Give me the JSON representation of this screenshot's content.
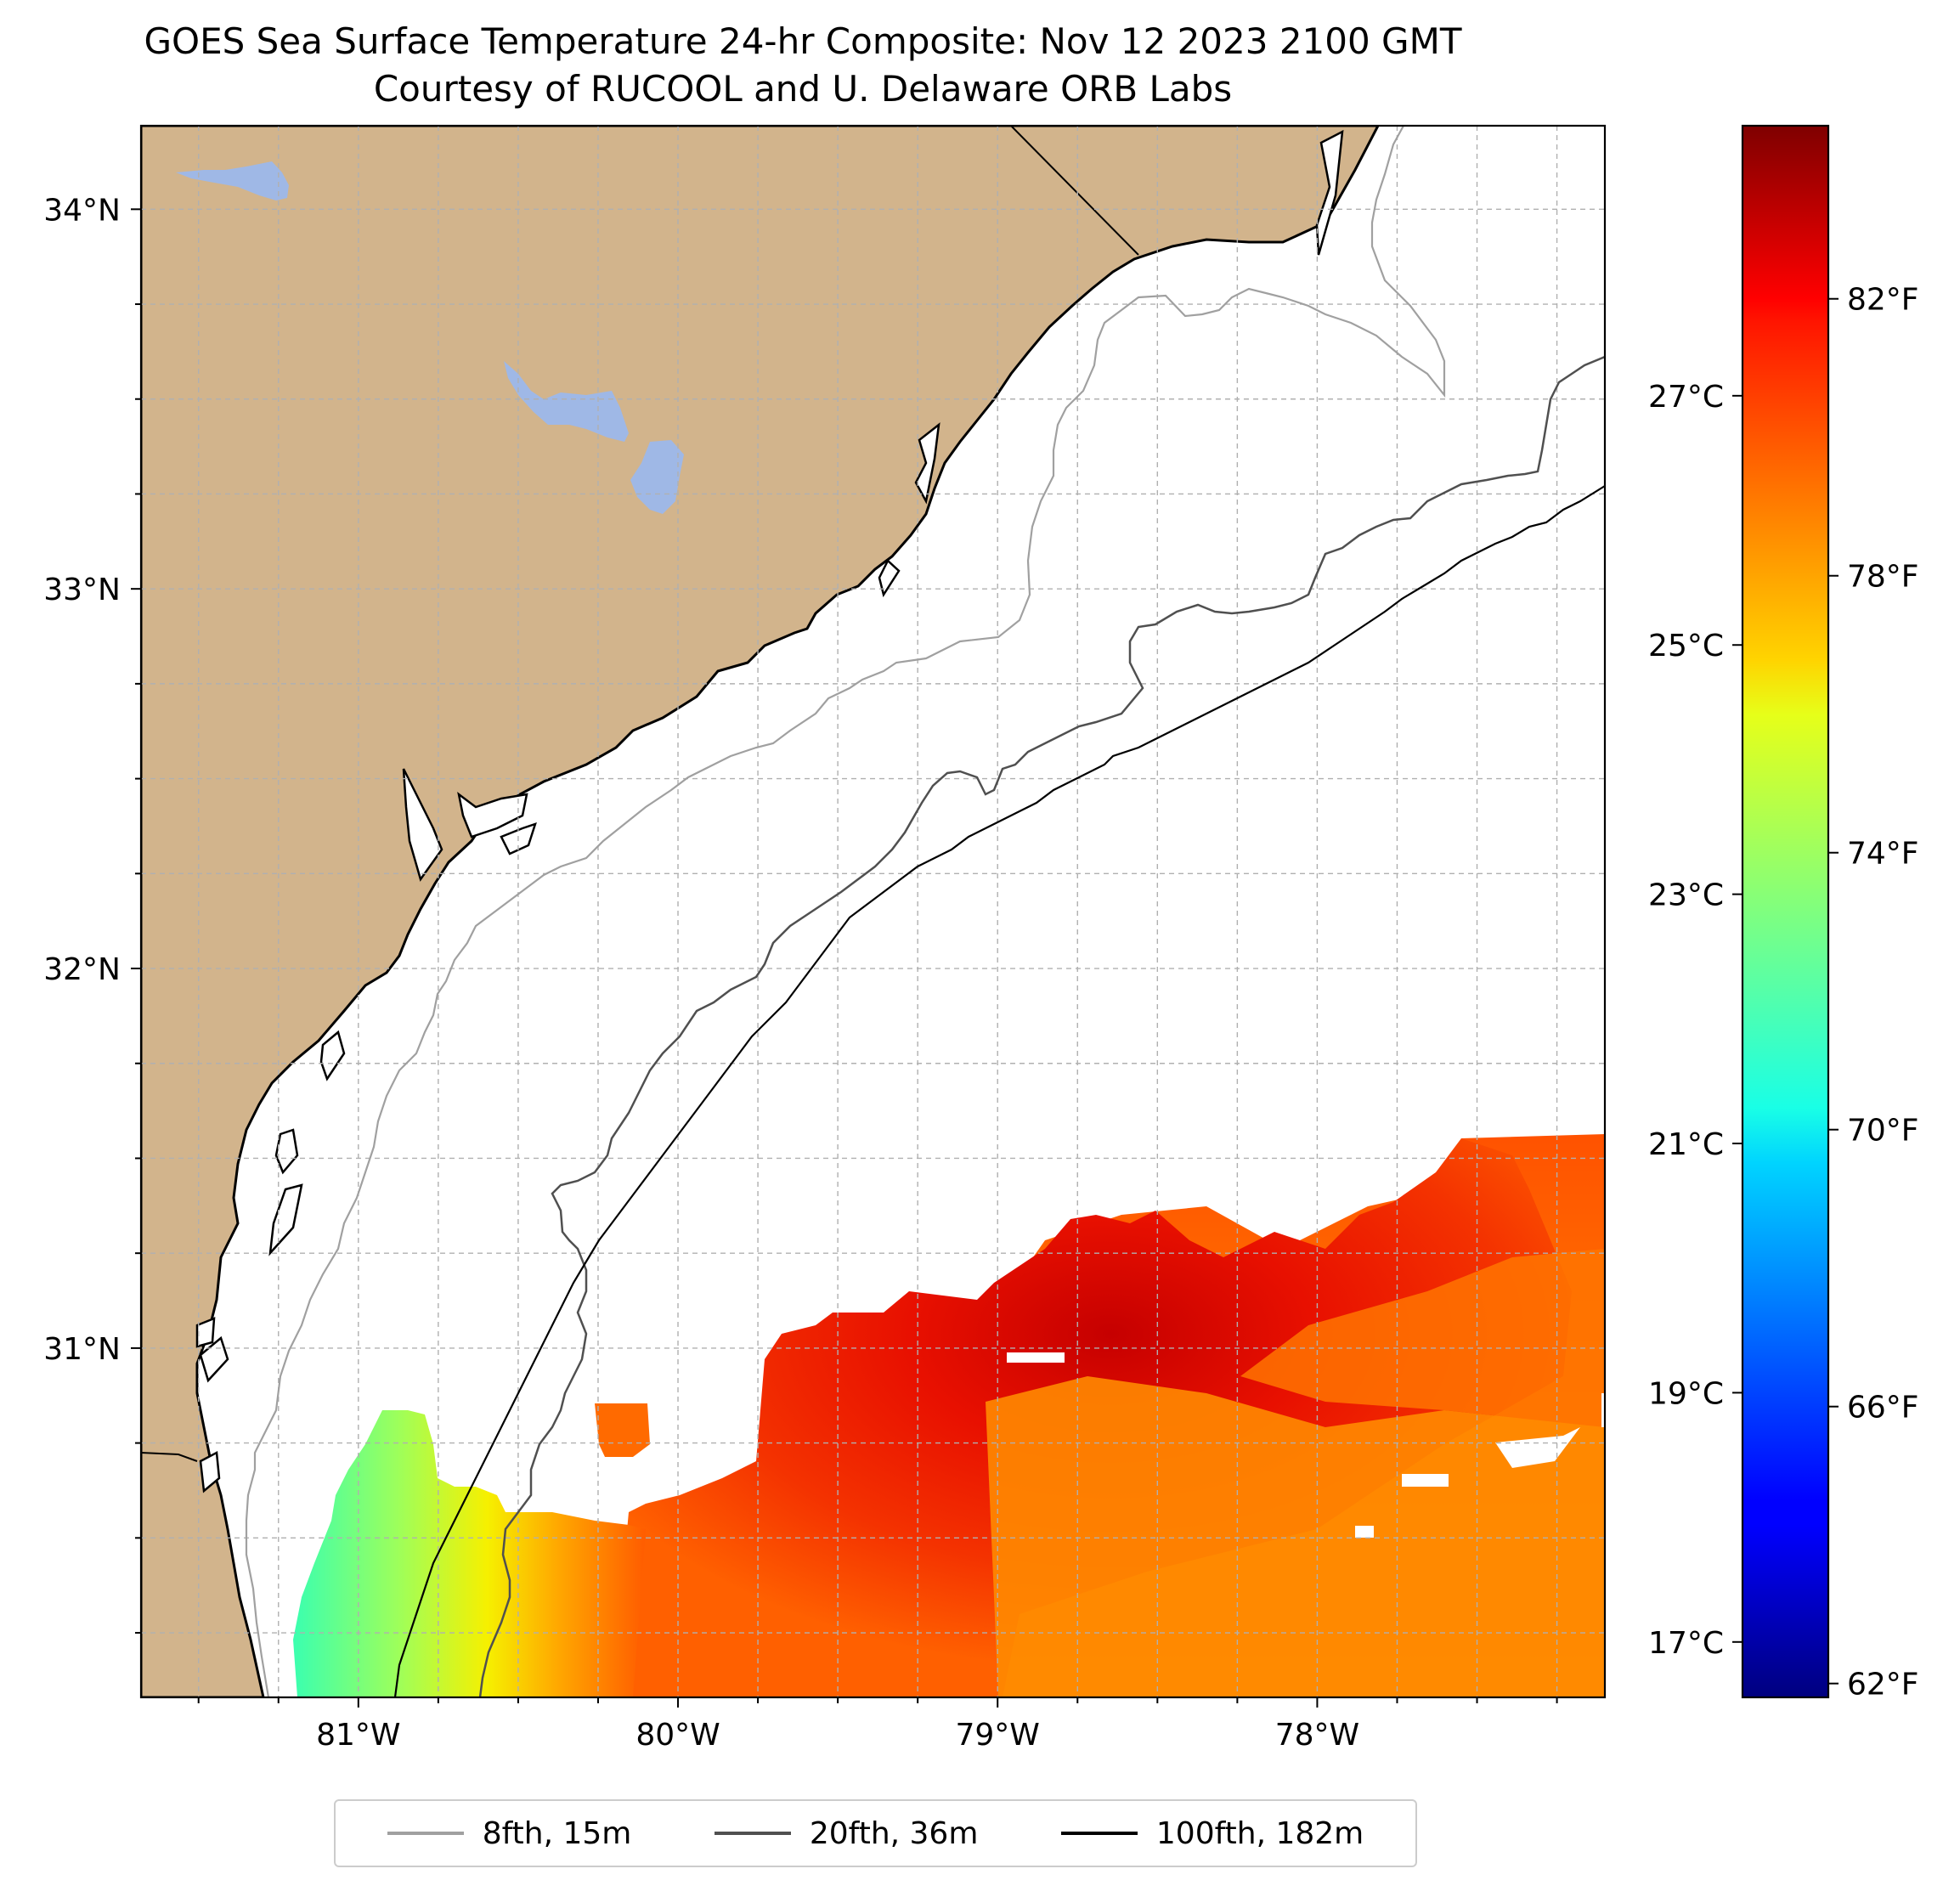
{
  "title": {
    "line1": "GOES Sea Surface Temperature 24-hr Composite: Nov 12 2023 2100 GMT",
    "line2": "Courtesy of RUCOOL and U. Delaware ORB Labs"
  },
  "map": {
    "lon_range": [
      -81.68,
      -77.1
    ],
    "lat_range": [
      30.08,
      34.22
    ],
    "lon_ticks": [
      {
        "value": -81,
        "label": "81°W"
      },
      {
        "value": -80,
        "label": "80°W"
      },
      {
        "value": -79,
        "label": "79°W"
      },
      {
        "value": -78,
        "label": "78°W"
      }
    ],
    "lat_ticks": [
      {
        "value": 34,
        "label": "34°N"
      },
      {
        "value": 33,
        "label": "33°N"
      },
      {
        "value": 32,
        "label": "32°N"
      },
      {
        "value": 31,
        "label": "31°N"
      }
    ],
    "grid_spacing_deg": 0.25,
    "gridlines": true,
    "colors": {
      "land": "#d2b48c",
      "water_body": "#9fb8e6",
      "ocean_no_data": "#ffffff",
      "isobath_8fth": "#a0a0a0",
      "isobath_20fth": "#505050",
      "isobath_100fth": "#000000"
    }
  },
  "colorbar": {
    "colormap": "jet",
    "range_f": [
      61.8,
      84.5
    ],
    "fahrenheit_ticks": [
      {
        "value": 62,
        "label": "62°F"
      },
      {
        "value": 66,
        "label": "66°F"
      },
      {
        "value": 70,
        "label": "70°F"
      },
      {
        "value": 74,
        "label": "74°F"
      },
      {
        "value": 78,
        "label": "78°F"
      },
      {
        "value": 82,
        "label": "82°F"
      }
    ],
    "celsius_ticks": [
      {
        "value": 17,
        "label": "17°C"
      },
      {
        "value": 19,
        "label": "19°C"
      },
      {
        "value": 21,
        "label": "21°C"
      },
      {
        "value": 23,
        "label": "23°C"
      },
      {
        "value": 25,
        "label": "25°C"
      },
      {
        "value": 27,
        "label": "27°C"
      }
    ]
  },
  "legend": {
    "position": "bottom-center",
    "items": [
      {
        "label": "8fth, 15m",
        "color": "#a0a0a0"
      },
      {
        "label": "20fth, 36m",
        "color": "#505050"
      },
      {
        "label": "100fth, 182m",
        "color": "#000000"
      }
    ]
  },
  "sst_field": {
    "description_regions": [
      {
        "region": "cool inshore patch near 81°W",
        "temp_f": 73
      },
      {
        "region": "warmest core near 79.5°W 30.8°N",
        "temp_f": 82.5
      },
      {
        "region": "eastern area near 78°W 30.5°N",
        "temp_f": 78.5
      }
    ]
  }
}
